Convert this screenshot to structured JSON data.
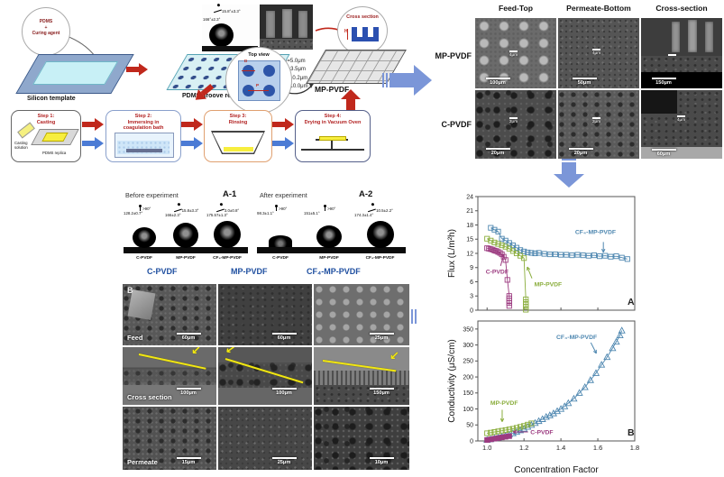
{
  "colors": {
    "arrow-blue": "#7b96d8",
    "arrow-red": "#c0281c",
    "step-blue": "#4b7bd5",
    "step-title": "#b22222",
    "series-blue": "#4e87b0",
    "series-green": "#8aad3c",
    "series-purple": "#9c3b80",
    "label-blue": "#1f4fa0",
    "annot-yellow": "#f2e713"
  },
  "icons": {
    "yellow_arrow": "↙"
  },
  "fab": {
    "pdms_l1": "PDMS",
    "pdms_l2": "+",
    "pdms_l3": "Curing agent",
    "silicon_template": "Silicon template",
    "groove_replica": "PDMS groove replica",
    "dims": [
      "D₁=5.0μm",
      "D₂=3.5μm",
      "P =10.2μm",
      "H =10.0μm"
    ],
    "droplet_photo": {
      "sliding_angle": "15.8°±3.3°",
      "contact_angle": "166°±2.3°",
      "sample": "MP-PVDF"
    },
    "top_view_label": "Top view",
    "top_view_d": "D",
    "top_view_p": "P",
    "cross_section_label": "Cross section",
    "cross_section_h": "H",
    "product_label": "MP-PVDF",
    "steps": [
      {
        "t1": "Step 1:",
        "t2": "Casting",
        "t3": "",
        "cap1": "Casting",
        "cap2": "solution",
        "cap3": "PDMS replica"
      },
      {
        "t1": "Step 2:",
        "t2": "Immersing in",
        "t3": "coagulation bath"
      },
      {
        "t1": "Step 3:",
        "t2": "Rinsing",
        "t3": ""
      },
      {
        "t1": "Step 4:",
        "t2": "Drying in Vacuum Oven",
        "t3": ""
      }
    ]
  },
  "sem_top": {
    "headers": [
      "Feed-Top",
      "Permeate-Bottom",
      "Cross-section"
    ],
    "rows": [
      {
        "label": "MP-PVDF",
        "scales": [
          "100μm",
          "50μm",
          "150μm"
        ],
        "insets": [
          "4μm",
          "4μm",
          ""
        ]
      },
      {
        "label": "C-PVDF",
        "scales": [
          "20μm",
          "20μm",
          "60μm"
        ],
        "insets": [
          "2μm",
          "2μm",
          "4μm"
        ]
      }
    ]
  },
  "wetting": {
    "before_label": "Before experiment",
    "before_tag": "A-1",
    "after_label": "After experiment",
    "after_tag": "A-2",
    "before": [
      {
        "name": "C-PVDF",
        "contact": "128.2±0.7°",
        "sliding": ">90°"
      },
      {
        "name": "MP-PVDF",
        "contact": "166±2.3°",
        "sliding": "15.8±3.3°"
      },
      {
        "name": "CF₄-MP-PVDF",
        "contact": "175.57±1.3°",
        "sliding": "3.0±0.8°"
      }
    ],
    "after": [
      {
        "name": "C-PVDF",
        "contact": "98.3±1.1°",
        "sliding": ">90°"
      },
      {
        "name": "MP-PVDF",
        "contact": "151±5.1°",
        "sliding": ">90°"
      },
      {
        "name": "CF₄-MP-PVDF",
        "contact": "174.3±1.4°",
        "sliding": "10.5±2.2°"
      }
    ],
    "group_labels": [
      "C-PVDF",
      "MP-PVDF",
      "CF₄-MP-PVDF"
    ]
  },
  "sem_bottom": {
    "tag": "B",
    "rows": [
      {
        "label": "Feed",
        "scales": [
          "60μm",
          "60μm",
          "25μm"
        ]
      },
      {
        "label": "Cross section",
        "scales": [
          "100μm",
          "100μm",
          "150μm"
        ]
      },
      {
        "label": "Permeate",
        "scales": [
          "15μm",
          "25μm",
          "10μm"
        ]
      }
    ]
  },
  "chart_data": [
    {
      "type": "line",
      "panel": "A",
      "title": "",
      "ylabel": "Flux (L/m²h)",
      "xlabel": "",
      "xlim": [
        0.95,
        1.8
      ],
      "ylim": [
        0,
        24
      ],
      "yticks": [
        0,
        3,
        6,
        9,
        12,
        15,
        18,
        21,
        24
      ],
      "xticks": [
        1.0,
        1.2,
        1.4,
        1.6,
        1.8
      ],
      "show_xtick_labels": false,
      "grid": false,
      "legend_position": "inline-annotations",
      "series": [
        {
          "name": "CF₄-MP-PVDF",
          "marker": "square-open",
          "color_key": "series-blue",
          "x": [
            1.02,
            1.04,
            1.06,
            1.08,
            1.1,
            1.12,
            1.14,
            1.16,
            1.18,
            1.2,
            1.22,
            1.24,
            1.26,
            1.28,
            1.31,
            1.34,
            1.37,
            1.4,
            1.43,
            1.46,
            1.49,
            1.52,
            1.55,
            1.58,
            1.61,
            1.64,
            1.67,
            1.7,
            1.73,
            1.76
          ],
          "y": [
            17.4,
            17.0,
            16.6,
            15.1,
            14.7,
            14.2,
            13.7,
            13.2,
            12.7,
            12.4,
            12.2,
            12.1,
            12.0,
            12.1,
            11.9,
            11.8,
            11.8,
            11.7,
            11.7,
            11.6,
            11.7,
            11.6,
            11.5,
            11.6,
            11.4,
            11.5,
            11.3,
            11.4,
            11.1,
            10.8
          ]
        },
        {
          "name": "MP-PVDF",
          "marker": "square-open",
          "color_key": "series-green",
          "x": [
            1.0,
            1.02,
            1.04,
            1.06,
            1.08,
            1.1,
            1.12,
            1.14,
            1.16,
            1.18,
            1.2,
            1.21,
            1.21,
            1.21,
            1.21,
            1.21
          ],
          "y": [
            15.1,
            14.7,
            14.3,
            14.0,
            13.7,
            13.4,
            13.0,
            12.5,
            12.0,
            11.5,
            11.0,
            2.3,
            1.7,
            1.2,
            0.7,
            0.1
          ]
        },
        {
          "name": "C-PVDF",
          "marker": "square-open",
          "color_key": "series-purple",
          "x": [
            1.0,
            1.01,
            1.02,
            1.03,
            1.04,
            1.05,
            1.06,
            1.07,
            1.08,
            1.09,
            1.1,
            1.11,
            1.12,
            1.12,
            1.12,
            1.12,
            1.12
          ],
          "y": [
            13.1,
            13.0,
            12.9,
            12.8,
            12.6,
            12.5,
            12.3,
            12.1,
            11.8,
            11.3,
            10.6,
            6.4,
            3.0,
            2.5,
            2.0,
            1.5,
            0.9
          ]
        }
      ],
      "annotations": [
        {
          "text": "CF₄-MP-PVDF",
          "color_key": "series-blue",
          "fx": 0.62,
          "fy": 0.33,
          "arrow": [
            0.8,
            0.4,
            0.8,
            0.49
          ]
        },
        {
          "text": "C-PVDF",
          "color_key": "series-purple",
          "fx": 0.05,
          "fy": 0.68,
          "arrow": [
            0.145,
            0.61,
            0.165,
            0.51
          ]
        },
        {
          "text": "MP-PVDF",
          "color_key": "series-green",
          "fx": 0.36,
          "fy": 0.79,
          "arrow": [
            0.345,
            0.72,
            0.315,
            0.62
          ]
        }
      ]
    },
    {
      "type": "scatter",
      "panel": "B",
      "title": "",
      "ylabel": "Conductivity (μS/cm)",
      "xlabel": "Concentration Factor",
      "xlim": [
        0.95,
        1.8
      ],
      "ylim": [
        0,
        375
      ],
      "yticks": [
        0,
        50,
        100,
        150,
        200,
        250,
        300,
        350
      ],
      "xticks": [
        1.0,
        1.2,
        1.4,
        1.6,
        1.8
      ],
      "show_xtick_labels": true,
      "grid": false,
      "legend_position": "inline-annotations",
      "series": [
        {
          "name": "CF₄-MP-PVDF",
          "marker": "triangle-open",
          "color_key": "series-blue",
          "x": [
            1.0,
            1.02,
            1.04,
            1.06,
            1.08,
            1.1,
            1.12,
            1.14,
            1.16,
            1.18,
            1.2,
            1.22,
            1.24,
            1.26,
            1.28,
            1.3,
            1.32,
            1.34,
            1.36,
            1.38,
            1.4,
            1.42,
            1.44,
            1.47,
            1.5,
            1.53,
            1.56,
            1.59,
            1.62,
            1.65,
            1.68,
            1.7,
            1.72,
            1.73
          ],
          "y": [
            3,
            5,
            8,
            10,
            13,
            16,
            20,
            24,
            28,
            33,
            38,
            44,
            50,
            56,
            62,
            68,
            75,
            80,
            86,
            93,
            100,
            108,
            118,
            132,
            150,
            168,
            190,
            212,
            238,
            262,
            290,
            310,
            330,
            345
          ]
        },
        {
          "name": "MP-PVDF",
          "marker": "square-open",
          "color_key": "series-green",
          "x": [
            1.0,
            1.02,
            1.04,
            1.06,
            1.08,
            1.1,
            1.12,
            1.14,
            1.16,
            1.18,
            1.2,
            1.22,
            1.24
          ],
          "y": [
            24,
            26,
            28,
            30,
            32,
            34,
            36,
            38,
            41,
            44,
            47,
            51,
            55
          ]
        },
        {
          "name": "C-PVDF",
          "marker": "square-filled",
          "color_key": "series-purple",
          "x": [
            1.0,
            1.02,
            1.04,
            1.06,
            1.08,
            1.1,
            1.12
          ],
          "y": [
            3,
            5,
            7,
            9,
            11,
            13,
            15
          ]
        }
      ],
      "annotations": [
        {
          "text": "CF₄-MP-PVDF",
          "color_key": "series-blue",
          "fx": 0.5,
          "fy": 0.15,
          "arrow": [
            0.72,
            0.18,
            0.755,
            0.27
          ]
        },
        {
          "text": "MP-PVDF",
          "color_key": "series-green",
          "fx": 0.08,
          "fy": 0.7,
          "arrow": [
            0.155,
            0.74,
            0.155,
            0.84
          ]
        },
        {
          "text": "C-PVDF",
          "color_key": "series-purple",
          "fx": 0.335,
          "fy": 0.945,
          "arrow": [
            0.32,
            0.925,
            0.225,
            0.925
          ]
        }
      ]
    }
  ]
}
